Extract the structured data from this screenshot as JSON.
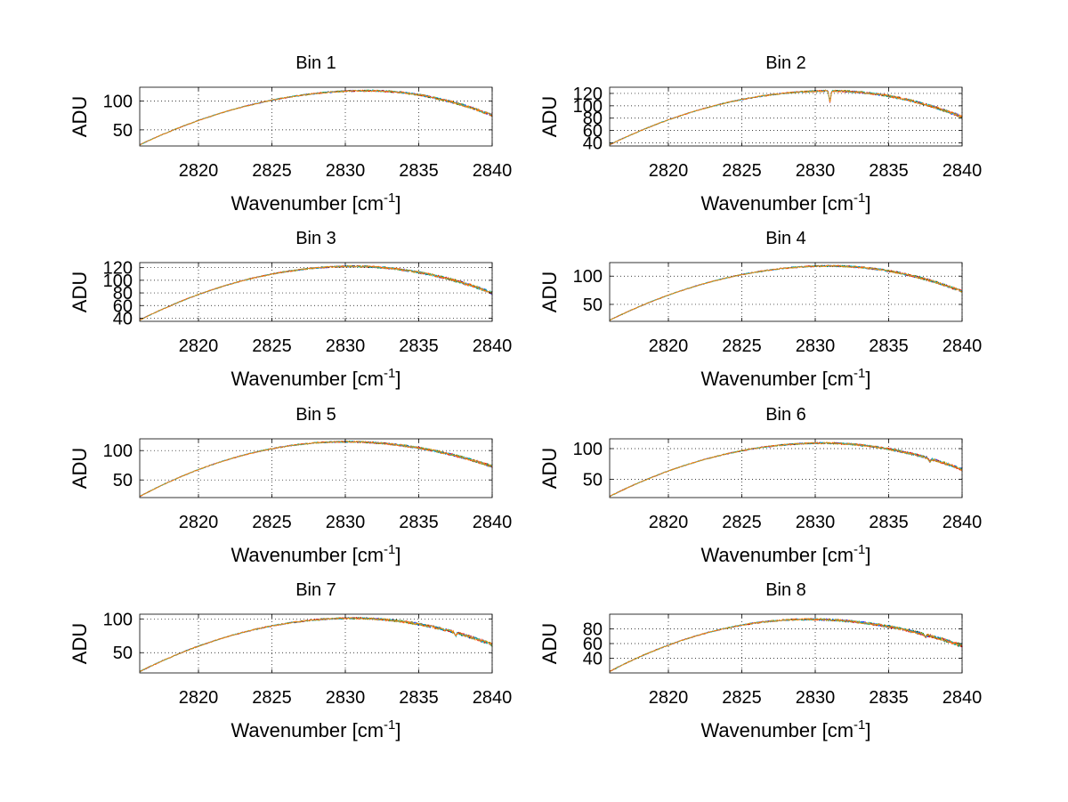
{
  "figure": {
    "background": "#ffffff",
    "line_colors": [
      "#0000ff",
      "#008000",
      "#ff0000",
      "#00bfbf",
      "#bf00bf",
      "#bfbf00",
      "#ff8c00"
    ]
  },
  "chart_data": [
    {
      "type": "line",
      "title": "Bin 1",
      "xlabel": "Wavenumber [cm",
      "xlabel_sup": "-1",
      "xlabel_end": "]",
      "ylabel": "ADU",
      "xlim": [
        2816,
        2840
      ],
      "ylim": [
        22,
        124
      ],
      "xticks": [
        2820,
        2825,
        2830,
        2835,
        2840
      ],
      "yticks": [
        50,
        100
      ],
      "grid": true,
      "peak_x": 2831.5,
      "y_start": 24,
      "y_peak": 118,
      "y_end": 75,
      "dips": []
    },
    {
      "type": "line",
      "title": "Bin 2",
      "xlabel": "Wavenumber [cm",
      "xlabel_sup": "-1",
      "xlabel_end": "]",
      "ylabel": "ADU",
      "xlim": [
        2816,
        2840
      ],
      "ylim": [
        35,
        130
      ],
      "xticks": [
        2820,
        2825,
        2830,
        2835,
        2840
      ],
      "yticks": [
        40,
        60,
        80,
        100,
        120
      ],
      "grid": true,
      "peak_x": 2831,
      "y_start": 37,
      "y_peak": 124,
      "y_end": 82,
      "dips": [
        [
          2831.0,
          18
        ]
      ]
    },
    {
      "type": "line",
      "title": "Bin 3",
      "xlabel": "Wavenumber [cm",
      "xlabel_sup": "-1",
      "xlabel_end": "]",
      "ylabel": "ADU",
      "xlim": [
        2816,
        2840
      ],
      "ylim": [
        35,
        128
      ],
      "xticks": [
        2820,
        2825,
        2830,
        2835,
        2840
      ],
      "yticks": [
        40,
        60,
        80,
        100,
        120
      ],
      "grid": true,
      "peak_x": 2830.5,
      "y_start": 37,
      "y_peak": 122,
      "y_end": 80,
      "dips": []
    },
    {
      "type": "line",
      "title": "Bin 4",
      "xlabel": "Wavenumber [cm",
      "xlabel_sup": "-1",
      "xlabel_end": "]",
      "ylabel": "ADU",
      "xlim": [
        2816,
        2840
      ],
      "ylim": [
        20,
        124
      ],
      "xticks": [
        2820,
        2825,
        2830,
        2835,
        2840
      ],
      "yticks": [
        50,
        100
      ],
      "grid": true,
      "peak_x": 2831,
      "y_start": 22,
      "y_peak": 118,
      "y_end": 73,
      "dips": []
    },
    {
      "type": "line",
      "title": "Bin 5",
      "xlabel": "Wavenumber [cm",
      "xlabel_sup": "-1",
      "xlabel_end": "]",
      "ylabel": "ADU",
      "xlim": [
        2816,
        2840
      ],
      "ylim": [
        20,
        120
      ],
      "xticks": [
        2820,
        2825,
        2830,
        2835,
        2840
      ],
      "yticks": [
        50,
        100
      ],
      "grid": true,
      "peak_x": 2830,
      "y_start": 22,
      "y_peak": 115,
      "y_end": 73,
      "dips": []
    },
    {
      "type": "line",
      "title": "Bin 6",
      "xlabel": "Wavenumber [cm",
      "xlabel_sup": "-1",
      "xlabel_end": "]",
      "ylabel": "ADU",
      "xlim": [
        2816,
        2840
      ],
      "ylim": [
        20,
        116
      ],
      "xticks": [
        2820,
        2825,
        2830,
        2835,
        2840
      ],
      "yticks": [
        50,
        100
      ],
      "grid": true,
      "peak_x": 2830.5,
      "y_start": 22,
      "y_peak": 109,
      "y_end": 66,
      "dips": [
        [
          2837.8,
          5
        ]
      ]
    },
    {
      "type": "line",
      "title": "Bin 7",
      "xlabel": "Wavenumber [cm",
      "xlabel_sup": "-1",
      "xlabel_end": "]",
      "ylabel": "ADU",
      "xlim": [
        2816,
        2840
      ],
      "ylim": [
        20,
        107
      ],
      "xticks": [
        2820,
        2825,
        2830,
        2835,
        2840
      ],
      "yticks": [
        50,
        100
      ],
      "grid": true,
      "peak_x": 2830.5,
      "y_start": 22,
      "y_peak": 101,
      "y_end": 62,
      "dips": [
        [
          2837.5,
          6
        ]
      ]
    },
    {
      "type": "line",
      "title": "Bin 8",
      "xlabel": "Wavenumber [cm",
      "xlabel_sup": "-1",
      "xlabel_end": "]",
      "ylabel": "ADU",
      "xlim": [
        2816,
        2840
      ],
      "ylim": [
        20,
        100
      ],
      "xticks": [
        2820,
        2825,
        2830,
        2835,
        2840
      ],
      "yticks": [
        40,
        60,
        80
      ],
      "grid": true,
      "peak_x": 2829.5,
      "y_start": 22,
      "y_peak": 93,
      "y_end": 57,
      "dips": [
        [
          2837.5,
          4
        ]
      ]
    }
  ]
}
